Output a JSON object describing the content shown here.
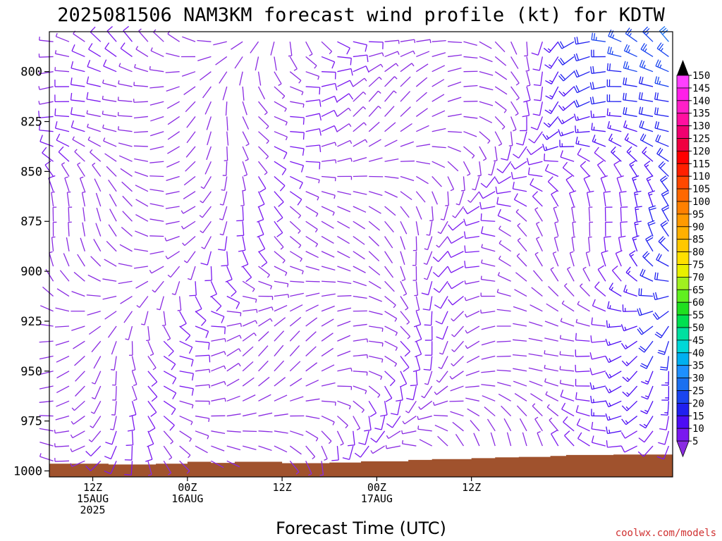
{
  "title": "2025081506 NAM3KM forecast wind profile (kt) for KDTW",
  "credit": "coolwx.com/models",
  "chart_data": {
    "type": "wind-barb-profile",
    "title": "2025081506 NAM3KM forecast wind profile (kt) for KDTW",
    "xlabel": "Forecast Time (UTC)",
    "ylabel": "",
    "units": "kt",
    "x_range_hours_utc": [
      6.5,
      85.5
    ],
    "y_range_hPa": [
      780,
      1003
    ],
    "y_ticks": [
      800,
      825,
      850,
      875,
      900,
      925,
      950,
      975,
      1000
    ],
    "x_ticks": [
      {
        "hour": 12,
        "lines": [
          "12Z",
          "15AUG",
          "2025"
        ]
      },
      {
        "hour": 24,
        "lines": [
          "00Z",
          "16AUG"
        ]
      },
      {
        "hour": 36,
        "lines": [
          "12Z"
        ]
      },
      {
        "hour": 48,
        "lines": [
          "00Z",
          "17AUG"
        ]
      },
      {
        "hour": 60,
        "lines": [
          "12Z"
        ]
      }
    ],
    "forecast_hours_first": 7,
    "forecast_hours_last": 85,
    "forecast_hours_step": 2,
    "barb_levels_hPa_top": 785,
    "barb_levels_hPa_bottom": 995,
    "barb_levels_hPa_step": 7.5,
    "colorbar": {
      "levels": [
        5,
        10,
        15,
        20,
        25,
        30,
        35,
        40,
        45,
        50,
        55,
        60,
        65,
        70,
        75,
        80,
        85,
        90,
        95,
        100,
        105,
        110,
        115,
        120,
        125,
        130,
        135,
        140,
        145,
        150
      ],
      "colors": [
        "#8a2be2",
        "#7a18f0",
        "#4d0df5",
        "#2020f0",
        "#1a45f0",
        "#1a70f0",
        "#1e90ff",
        "#00b0f0",
        "#00d8d8",
        "#00e0a0",
        "#00e050",
        "#20e020",
        "#60f020",
        "#a0f020",
        "#e8f000",
        "#ffe000",
        "#ffc800",
        "#ffb000",
        "#ff9a00",
        "#ff8000",
        "#ff6800",
        "#ff4800",
        "#ff2000",
        "#ff0000",
        "#f00040",
        "#f00070",
        "#ff10a0",
        "#ff20c8",
        "#ff20e8",
        "#ff40ff"
      ]
    },
    "surface_pressure_hPa": [
      {
        "hour": 6.5,
        "p": 996.4
      },
      {
        "hour": 14,
        "p": 996.8
      },
      {
        "hour": 20,
        "p": 996.4
      },
      {
        "hour": 24,
        "p": 995.4
      },
      {
        "hour": 27,
        "p": 996.0
      },
      {
        "hour": 30,
        "p": 995.4
      },
      {
        "hour": 36,
        "p": 996.1
      },
      {
        "hour": 41,
        "p": 996.1
      },
      {
        "hour": 42,
        "p": 995.8
      },
      {
        "hour": 46,
        "p": 995.2
      },
      {
        "hour": 52,
        "p": 994.5
      },
      {
        "hour": 55,
        "p": 994.1
      },
      {
        "hour": 60,
        "p": 993.6
      },
      {
        "hour": 63,
        "p": 993.2
      },
      {
        "hour": 66,
        "p": 993.0
      },
      {
        "hour": 70,
        "p": 992.5
      },
      {
        "hour": 72,
        "p": 992.0
      },
      {
        "hour": 78,
        "p": 991.8
      },
      {
        "hour": 85.5,
        "p": 991.5
      }
    ],
    "surface_color": "#a0522d",
    "barb_color_default": "#8a2be2"
  }
}
